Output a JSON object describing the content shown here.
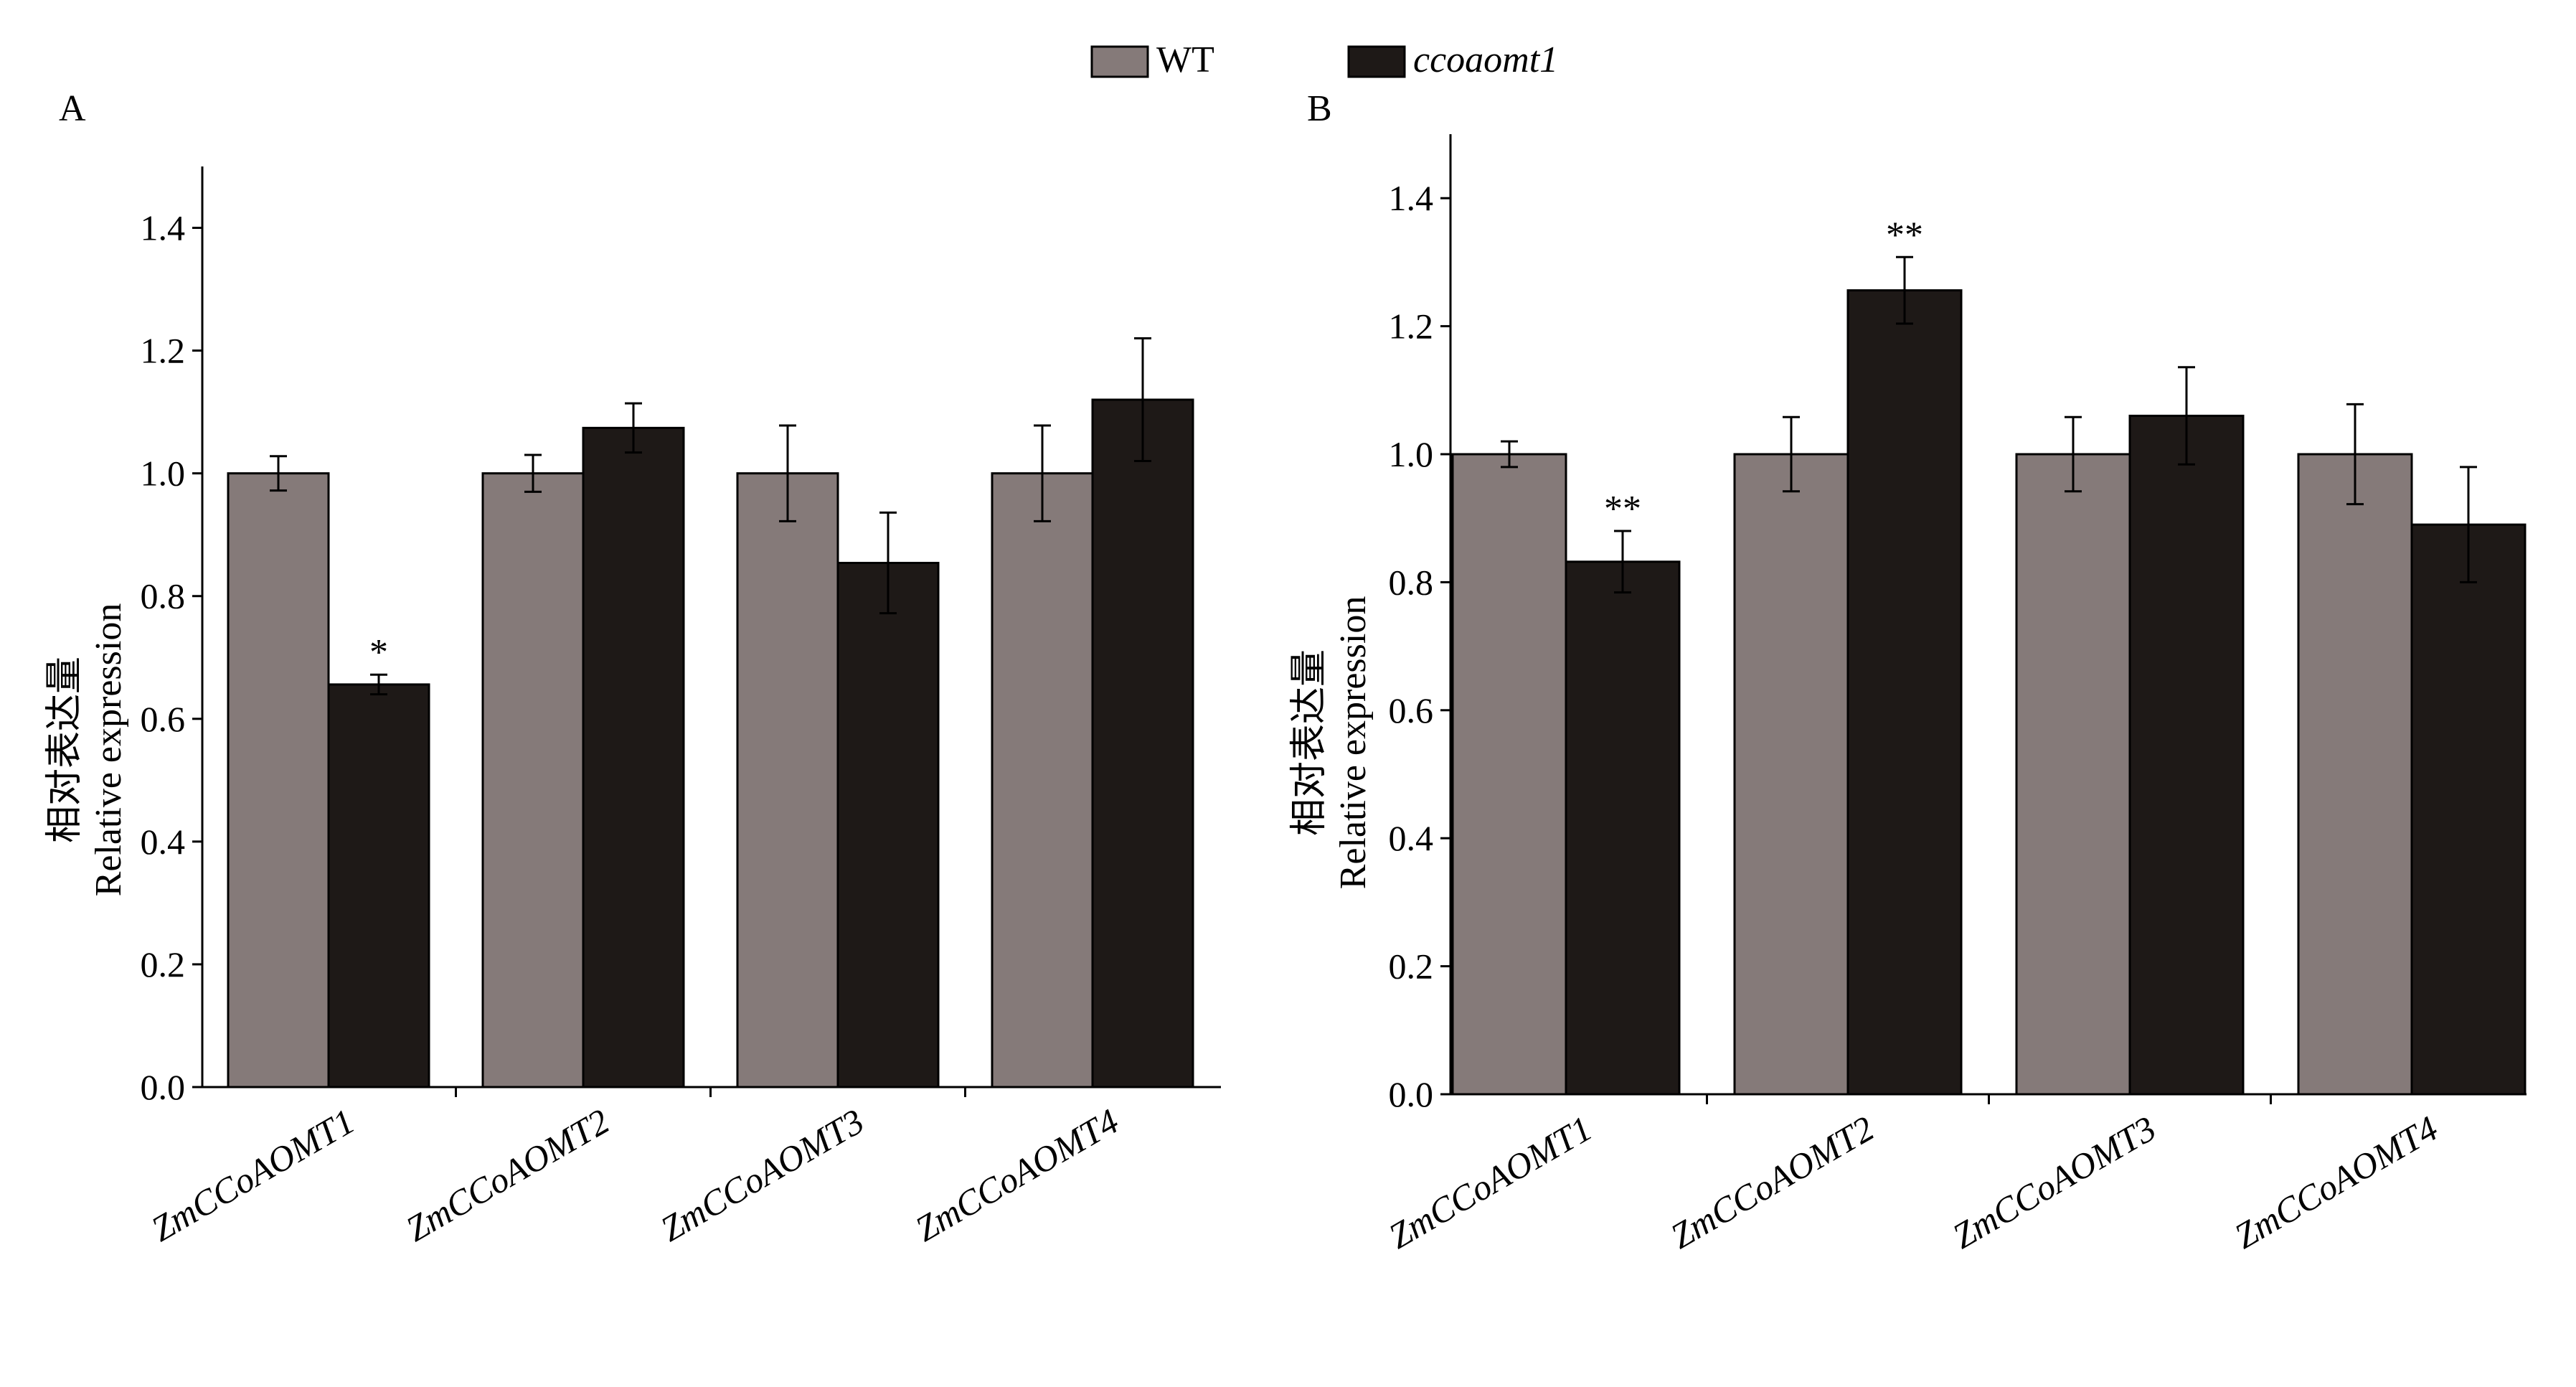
{
  "legend": {
    "placement": "top-center",
    "entries": [
      {
        "label": "WT",
        "color": "#857a79",
        "italic": false
      },
      {
        "label": "ccoaomt1",
        "color": "#1e1917",
        "italic": true
      }
    ]
  },
  "chart_data": [
    {
      "panel": "A",
      "type": "bar",
      "ylabel_cn": "相对表达量",
      "ylabel_en": "Relative expression",
      "ylim": [
        0,
        1.5
      ],
      "yticks": [
        0.0,
        0.2,
        0.4,
        0.6,
        0.8,
        1.0,
        1.2,
        1.4
      ],
      "tick_format": 1,
      "grid": false,
      "categories": [
        "ZmCCoAOMT1",
        "ZmCCoAOMT2",
        "ZmCCoAOMT3",
        "ZmCCoAOMT4"
      ],
      "series": [
        {
          "name": "WT",
          "color": "#857a79",
          "values": [
            1.0,
            1.0,
            1.0,
            1.0
          ],
          "errors": [
            0.028,
            0.03,
            0.078,
            0.078
          ],
          "sig": [
            "",
            "",
            "",
            ""
          ]
        },
        {
          "name": "ccoaomt1",
          "color": "#1e1917",
          "values": [
            0.656,
            1.074,
            0.854,
            1.12
          ],
          "errors": [
            0.016,
            0.04,
            0.082,
            0.1
          ],
          "sig": [
            "*",
            "",
            "",
            ""
          ]
        }
      ]
    },
    {
      "panel": "B",
      "type": "bar",
      "ylabel_cn": "相对表达量",
      "ylabel_en": "Relative expression",
      "ylim": [
        0,
        1.5
      ],
      "yticks": [
        0.0,
        0.2,
        0.4,
        0.6,
        0.8,
        1.0,
        1.2,
        1.4
      ],
      "tick_format": 1,
      "grid": false,
      "categories": [
        "ZmCCoAOMT1",
        "ZmCCoAOMT2",
        "ZmCCoAOMT3",
        "ZmCCoAOMT4"
      ],
      "series": [
        {
          "name": "WT",
          "color": "#857a79",
          "values": [
            1.0,
            1.0,
            1.0,
            1.0
          ],
          "errors": [
            0.02,
            0.058,
            0.058,
            0.078
          ],
          "sig": [
            "",
            "",
            "",
            ""
          ]
        },
        {
          "name": "ccoaomt1",
          "color": "#1e1917",
          "values": [
            0.832,
            1.256,
            1.06,
            0.89
          ],
          "errors": [
            0.048,
            0.052,
            0.076,
            0.09
          ],
          "sig": [
            "**",
            "**",
            "",
            ""
          ]
        }
      ]
    }
  ]
}
